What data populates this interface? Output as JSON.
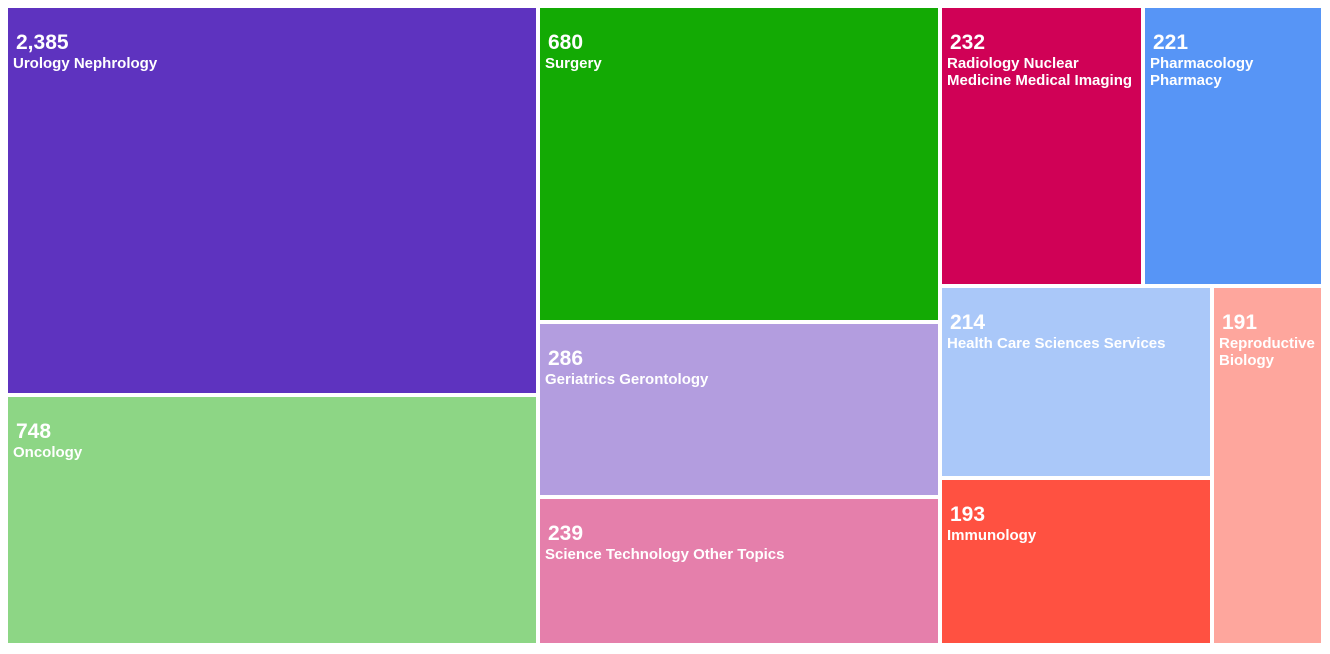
{
  "chart_data": {
    "type": "treemap",
    "items": [
      {
        "label": "Urology Nephrology",
        "value": "2,385",
        "color": "#5e33bf"
      },
      {
        "label": "Oncology",
        "value": "748",
        "color": "#8dd685"
      },
      {
        "label": "Surgery",
        "value": "680",
        "color": "#13aa04"
      },
      {
        "label": "Geriatrics Gerontology",
        "value": "286",
        "color": "#b39ddf"
      },
      {
        "label": "Science Technology Other Topics",
        "value": "239",
        "color": "#e57fab"
      },
      {
        "label": "Radiology Nuclear Medicine Medical Imaging",
        "value": "232",
        "color": "#d00156"
      },
      {
        "label": "Pharmacology Pharmacy",
        "value": "221",
        "color": "#5795f6"
      },
      {
        "label": "Health Care Sciences Services",
        "value": "214",
        "color": "#aac8f9"
      },
      {
        "label": "Immunology",
        "value": "193",
        "color": "#ff5141"
      },
      {
        "label": "Reproductive Biology",
        "value": "191",
        "color": "#fea69d"
      }
    ]
  }
}
